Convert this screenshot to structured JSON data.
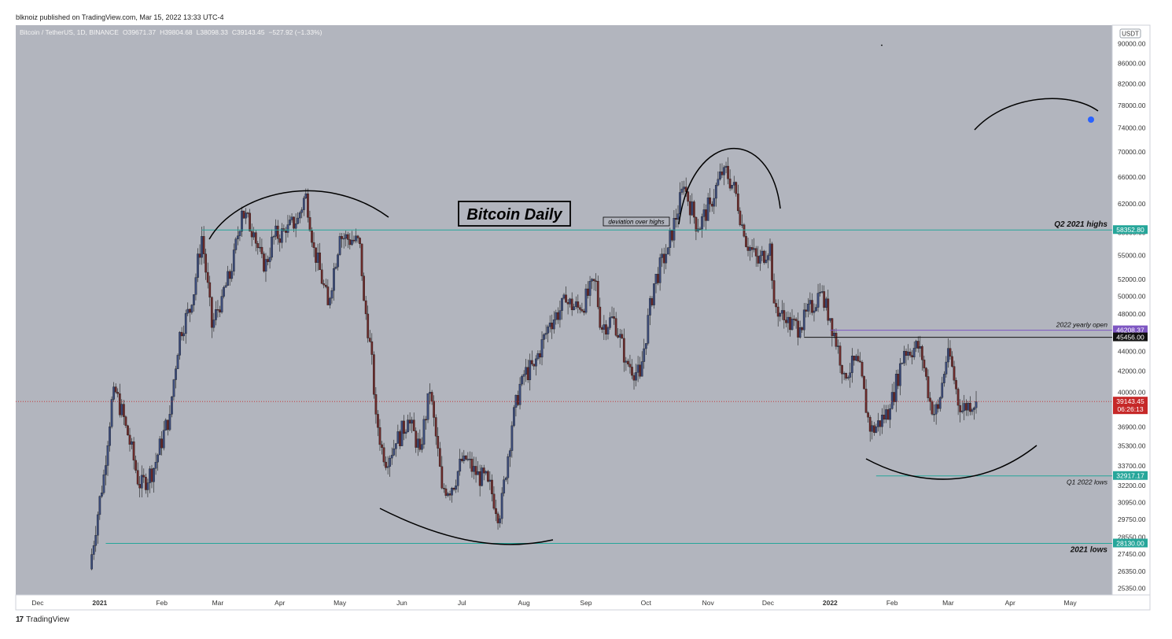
{
  "header": {
    "published_text": "blknoiz published on TradingView.com, Mar 15, 2022 13:33 UTC-4"
  },
  "footer": {
    "brand": "TradingView",
    "brand_mark": "17"
  },
  "chart_data": {
    "type": "candlestick",
    "symbol_line": {
      "symbol": "Bitcoin / TetherUS, 1D, BINANCE",
      "open": "O39671.37",
      "high": "H39804.68",
      "low": "L38098.33",
      "close": "C39143.45",
      "change": "−527.92 (−1.33%)"
    },
    "currency": "USDT",
    "y_scale": "log",
    "ylim": [
      24950,
      94000
    ],
    "xlim": [
      "2020-11-20",
      "2022-05-22"
    ],
    "y_ticks": [
      "90000.00",
      "86000.00",
      "82000.00",
      "78000.00",
      "74000.00",
      "70000.00",
      "66000.00",
      "62000.00",
      "58000.00",
      "55000.00",
      "52000.00",
      "50000.00",
      "48000.00",
      "46000.00",
      "44000.00",
      "42000.00",
      "40000.00",
      "36900.00",
      "35300.00",
      "33700.00",
      "32200.00",
      "30950.00",
      "29750.00",
      "28550.00",
      "27450.00",
      "26350.00",
      "25350.00"
    ],
    "x_ticks": [
      {
        "label": "Dec",
        "date": "2020-12-01"
      },
      {
        "label": "2021",
        "date": "2021-01-01"
      },
      {
        "label": "Feb",
        "date": "2021-02-01"
      },
      {
        "label": "Mar",
        "date": "2021-03-01"
      },
      {
        "label": "Apr",
        "date": "2021-04-01"
      },
      {
        "label": "May",
        "date": "2021-05-01"
      },
      {
        "label": "Jun",
        "date": "2021-06-01"
      },
      {
        "label": "Jul",
        "date": "2021-07-01"
      },
      {
        "label": "Aug",
        "date": "2021-08-01"
      },
      {
        "label": "Sep",
        "date": "2021-09-01"
      },
      {
        "label": "Oct",
        "date": "2021-10-01"
      },
      {
        "label": "Nov",
        "date": "2021-11-01"
      },
      {
        "label": "Dec",
        "date": "2021-12-01"
      },
      {
        "label": "2022",
        "date": "2022-01-01"
      },
      {
        "label": "Feb",
        "date": "2022-02-01"
      },
      {
        "label": "Mar",
        "date": "2022-03-01"
      },
      {
        "label": "Apr",
        "date": "2022-04-01"
      },
      {
        "label": "May",
        "date": "2022-05-01"
      }
    ],
    "closes": [
      {
        "date": "2020-12-27",
        "close": 26500
      },
      {
        "date": "2021-01-03",
        "close": 33000
      },
      {
        "date": "2021-01-08",
        "close": 40500
      },
      {
        "date": "2021-01-14",
        "close": 37000
      },
      {
        "date": "2021-01-21",
        "close": 32000
      },
      {
        "date": "2021-01-28",
        "close": 33500
      },
      {
        "date": "2021-02-05",
        "close": 38000
      },
      {
        "date": "2021-02-10",
        "close": 46000
      },
      {
        "date": "2021-02-16",
        "close": 49000
      },
      {
        "date": "2021-02-21",
        "close": 57500
      },
      {
        "date": "2021-02-26",
        "close": 46500
      },
      {
        "date": "2021-03-03",
        "close": 50000
      },
      {
        "date": "2021-03-08",
        "close": 53000
      },
      {
        "date": "2021-03-13",
        "close": 61000
      },
      {
        "date": "2021-03-19",
        "close": 58000
      },
      {
        "date": "2021-03-24",
        "close": 53000
      },
      {
        "date": "2021-03-29",
        "close": 57500
      },
      {
        "date": "2021-04-04",
        "close": 58000
      },
      {
        "date": "2021-04-10",
        "close": 60000
      },
      {
        "date": "2021-04-14",
        "close": 63500
      },
      {
        "date": "2021-04-18",
        "close": 56000
      },
      {
        "date": "2021-04-25",
        "close": 49000
      },
      {
        "date": "2021-05-01",
        "close": 57500
      },
      {
        "date": "2021-05-07",
        "close": 57000
      },
      {
        "date": "2021-05-11",
        "close": 56500
      },
      {
        "date": "2021-05-13",
        "close": 49500
      },
      {
        "date": "2021-05-16",
        "close": 45000
      },
      {
        "date": "2021-05-19",
        "close": 38000
      },
      {
        "date": "2021-05-23",
        "close": 34000
      },
      {
        "date": "2021-05-29",
        "close": 35500
      },
      {
        "date": "2021-06-04",
        "close": 37500
      },
      {
        "date": "2021-06-10",
        "close": 35000
      },
      {
        "date": "2021-06-15",
        "close": 40000
      },
      {
        "date": "2021-06-21",
        "close": 32000
      },
      {
        "date": "2021-06-26",
        "close": 32000
      },
      {
        "date": "2021-07-02",
        "close": 34500
      },
      {
        "date": "2021-07-08",
        "close": 33000
      },
      {
        "date": "2021-07-14",
        "close": 32500
      },
      {
        "date": "2021-07-20",
        "close": 29800
      },
      {
        "date": "2021-07-26",
        "close": 37000
      },
      {
        "date": "2021-07-31",
        "close": 41500
      },
      {
        "date": "2021-08-06",
        "close": 42500
      },
      {
        "date": "2021-08-14",
        "close": 47000
      },
      {
        "date": "2021-08-22",
        "close": 49300
      },
      {
        "date": "2021-08-29",
        "close": 48500
      },
      {
        "date": "2021-09-06",
        "close": 51800
      },
      {
        "date": "2021-09-08",
        "close": 46500
      },
      {
        "date": "2021-09-15",
        "close": 47500
      },
      {
        "date": "2021-09-21",
        "close": 43000
      },
      {
        "date": "2021-09-28",
        "close": 41500
      },
      {
        "date": "2021-10-05",
        "close": 51500
      },
      {
        "date": "2021-10-12",
        "close": 56000
      },
      {
        "date": "2021-10-20",
        "close": 64500
      },
      {
        "date": "2021-10-27",
        "close": 58500
      },
      {
        "date": "2021-11-02",
        "close": 62000
      },
      {
        "date": "2021-11-09",
        "close": 67500
      },
      {
        "date": "2021-11-15",
        "close": 63500
      },
      {
        "date": "2021-11-19",
        "close": 57500
      },
      {
        "date": "2021-11-26",
        "close": 54000
      },
      {
        "date": "2021-12-02",
        "close": 56500
      },
      {
        "date": "2021-12-04",
        "close": 49200
      },
      {
        "date": "2021-12-10",
        "close": 47000
      },
      {
        "date": "2021-12-17",
        "close": 46500
      },
      {
        "date": "2021-12-27",
        "close": 50500
      },
      {
        "date": "2022-01-01",
        "close": 47500
      },
      {
        "date": "2022-01-08",
        "close": 41800
      },
      {
        "date": "2022-01-15",
        "close": 43000
      },
      {
        "date": "2022-01-21",
        "close": 36500
      },
      {
        "date": "2022-01-24",
        "close": 36900
      },
      {
        "date": "2022-01-31",
        "close": 38500
      },
      {
        "date": "2022-02-07",
        "close": 44000
      },
      {
        "date": "2022-02-15",
        "close": 44500
      },
      {
        "date": "2022-02-21",
        "close": 38000
      },
      {
        "date": "2022-02-24",
        "close": 38500
      },
      {
        "date": "2022-03-01",
        "close": 44300
      },
      {
        "date": "2022-03-07",
        "close": 38200
      },
      {
        "date": "2022-03-11",
        "close": 39000
      },
      {
        "date": "2022-03-15",
        "close": 39143
      }
    ],
    "levels": [
      {
        "label": "Q2 2021 highs",
        "value": 58352.8,
        "value_text": "58352.80",
        "color": "#26a69a",
        "start": "2021-02-21"
      },
      {
        "label": "2022 yearly open",
        "value": 46208.37,
        "value_text": "46208.37",
        "color": "#7e57c2",
        "start": "2022-01-01"
      },
      {
        "label": "",
        "value": 45456.0,
        "value_text": "45456.00",
        "color": "#111111",
        "start": "2021-12-19"
      },
      {
        "label": "Q1 2022 lows",
        "value": 32917.17,
        "value_text": "32917.17",
        "color": "#26a69a",
        "start": "2022-01-24"
      },
      {
        "label": "2021 lows",
        "value": 28130.0,
        "value_text": "28130.00",
        "color": "#26a69a",
        "start": "2021-01-04"
      }
    ],
    "current_price": {
      "value": 39143.45,
      "value_text": "39143.45",
      "countdown": "06:26:13",
      "color": "#c62828"
    },
    "annotations": {
      "title_box": "Bitcoin Daily",
      "note_box": "deviation over highs"
    },
    "colors": {
      "background": "#b2b5be",
      "up": "#3b4b7a",
      "down": "#6b2a2a",
      "wick": "#1a1a1a"
    }
  }
}
